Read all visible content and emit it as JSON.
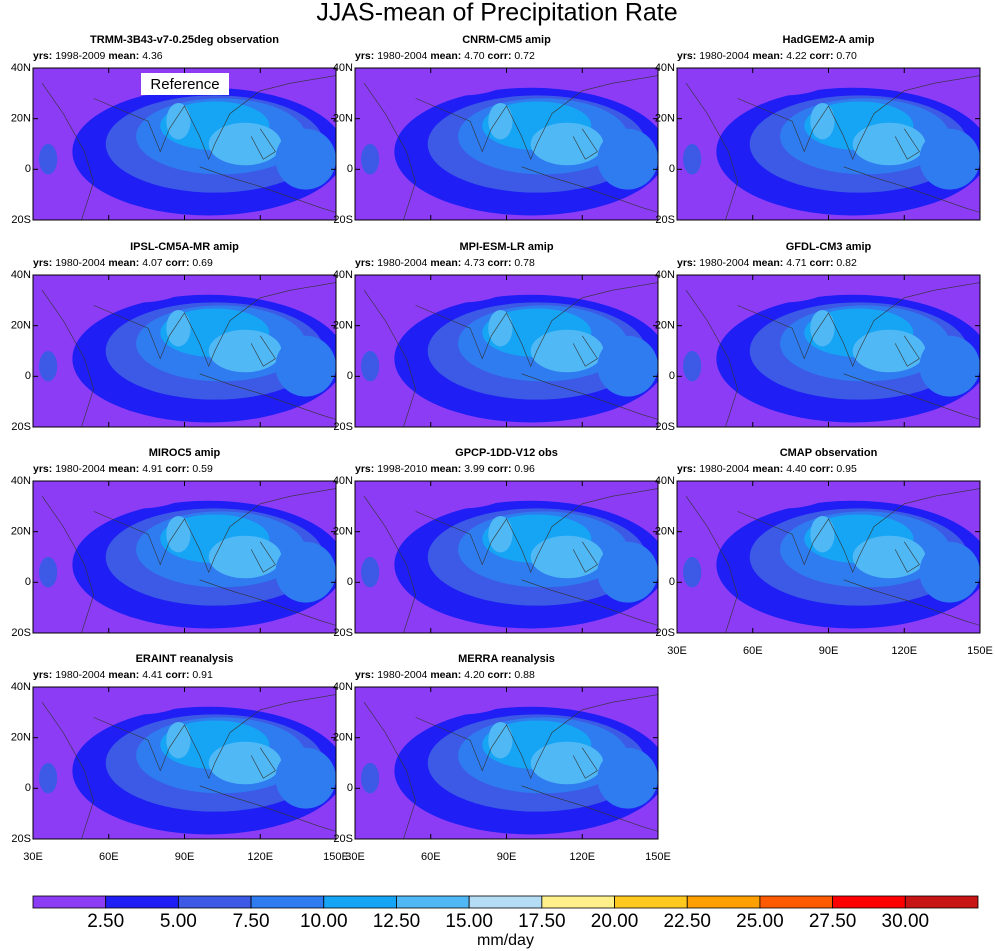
{
  "title": "JJAS-mean of Precipitation Rate",
  "labels": {
    "yrs": "yrs:",
    "mean": "mean:",
    "corr": "corr:"
  },
  "panels": [
    {
      "title": "TRMM-3B43-v7-0.25deg observation",
      "yrs": "1998-2009",
      "mean": "4.36",
      "annotation": "Reference"
    },
    {
      "title": "CNRM-CM5 amip",
      "yrs": "1980-2004",
      "mean": "4.70",
      "corr": "0.72"
    },
    {
      "title": "HadGEM2-A amip",
      "yrs": "1980-2004",
      "mean": "4.22",
      "corr": "0.70"
    },
    {
      "title": "IPSL-CM5A-MR amip",
      "yrs": "1980-2004",
      "mean": "4.07",
      "corr": "0.69"
    },
    {
      "title": "MPI-ESM-LR amip",
      "yrs": "1980-2004",
      "mean": "4.73",
      "corr": "0.78"
    },
    {
      "title": "GFDL-CM3 amip",
      "yrs": "1980-2004",
      "mean": "4.71",
      "corr": "0.82"
    },
    {
      "title": "MIROC5 amip",
      "yrs": "1980-2004",
      "mean": "4.91",
      "corr": "0.59"
    },
    {
      "title": "GPCP-1DD-V12 obs",
      "yrs": "1998-2010",
      "mean": "3.99",
      "corr": "0.96"
    },
    {
      "title": "CMAP observation",
      "yrs": "1980-2004",
      "mean": "4.40",
      "corr": "0.95"
    },
    {
      "title": "ERAINT reanalysis",
      "yrs": "1980-2004",
      "mean": "4.41",
      "corr": "0.91"
    },
    {
      "title": "MERRA reanalysis",
      "yrs": "1980-2004",
      "mean": "4.20",
      "corr": "0.88"
    }
  ],
  "lat_ticks": [
    "40N",
    "20N",
    "0",
    "20S"
  ],
  "lon_ticks": [
    "30E",
    "60E",
    "90E",
    "120E",
    "150E"
  ],
  "colorbar": {
    "labels": [
      "2.50",
      "5.00",
      "7.50",
      "10.00",
      "12.50",
      "15.00",
      "17.50",
      "20.00",
      "22.50",
      "25.00",
      "27.50",
      "30.00"
    ],
    "colors": [
      "#8c3cf5",
      "#1e1ef5",
      "#3c5ae6",
      "#2f7bf0",
      "#16a5f5",
      "#50b9f5",
      "#b4dcf5",
      "#fff08c",
      "#ffc81e",
      "#ffa000",
      "#ff5a00",
      "#ff0000",
      "#c81414"
    ],
    "unit": "mm/day"
  }
}
